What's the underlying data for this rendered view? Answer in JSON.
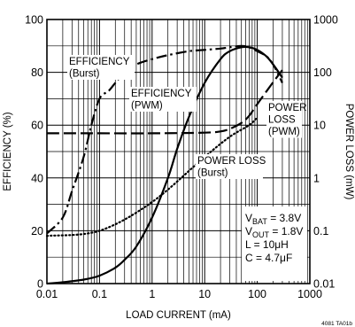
{
  "chart_data": {
    "type": "line",
    "xlabel": "LOAD CURRENT (mA)",
    "ylabel_left": "EFFICIENCY (%)",
    "ylabel_right": "POWER LOSS (mW)",
    "x_scale": "log",
    "xlim": [
      0.01,
      1000
    ],
    "y_left_lim": [
      0,
      100
    ],
    "y_right_scale": "log",
    "y_right_lim": [
      0.01,
      1000
    ],
    "x_ticks": [
      "0.01",
      "0.1",
      "1",
      "10",
      "100",
      "1000"
    ],
    "y_left_ticks": [
      "0",
      "20",
      "40",
      "60",
      "80",
      "100"
    ],
    "y_right_ticks": [
      "0.01",
      "0.1",
      "1",
      "10",
      "100",
      "1000"
    ],
    "grid": true,
    "series": [
      {
        "name": "EFFICIENCY (Burst)",
        "axis": "left",
        "style": "dash-dot",
        "x": [
          0.01,
          0.02,
          0.03,
          0.05,
          0.07,
          0.1,
          0.15,
          0.2,
          0.3,
          0.5,
          1,
          2,
          5,
          10,
          20,
          30,
          50,
          70,
          100,
          150,
          200,
          300
        ],
        "y": [
          19,
          25,
          35,
          48,
          60,
          70,
          73,
          76,
          80,
          83,
          85,
          86.5,
          88,
          88.5,
          89,
          89.5,
          90,
          89.5,
          88,
          86,
          83,
          76
        ]
      },
      {
        "name": "EFFICIENCY (PWM)",
        "axis": "left",
        "style": "solid",
        "x": [
          0.01,
          0.02,
          0.05,
          0.1,
          0.2,
          0.3,
          0.5,
          1,
          2,
          3,
          5,
          10,
          20,
          30,
          50,
          70,
          100,
          150,
          200,
          300
        ],
        "y": [
          0,
          0.5,
          1.5,
          3,
          6,
          9,
          14,
          25,
          40,
          51,
          63,
          76,
          85,
          88,
          89.5,
          89.5,
          88.5,
          86,
          83,
          78
        ]
      },
      {
        "name": "POWER LOSS (PWM)",
        "axis": "right",
        "style": "dashed",
        "x": [
          0.01,
          0.1,
          1,
          10,
          20,
          30,
          50,
          70,
          100,
          200,
          300
        ],
        "y": [
          7,
          7,
          7,
          7.2,
          7.6,
          8.5,
          11,
          15,
          25,
          65,
          110
        ]
      },
      {
        "name": "POWER LOSS (Burst)",
        "axis": "right",
        "style": "dotted",
        "x": [
          0.01,
          0.1,
          1,
          10,
          30,
          70,
          100
        ],
        "y": [
          0.08,
          0.1,
          0.35,
          2.5,
          6,
          10,
          14
        ]
      }
    ],
    "annotations": [
      {
        "lines": [
          "EFFICIENCY",
          "(Burst)"
        ]
      },
      {
        "lines": [
          "EFFICIENCY",
          "(PWM)"
        ]
      },
      {
        "lines": [
          "POWER",
          "LOSS",
          "(PWM)"
        ]
      },
      {
        "lines": [
          "POWER LOSS",
          "(Burst)"
        ]
      }
    ],
    "conditions": [
      {
        "main": "V",
        "sub": "BAT",
        "rest": " = 3.8V"
      },
      {
        "main": "V",
        "sub": "OUT",
        "rest": " = 1.8V"
      },
      {
        "main": "L = 10μH",
        "sub": "",
        "rest": ""
      },
      {
        "main": "C = 4.7μF",
        "sub": "",
        "rest": ""
      }
    ],
    "figure_id": "4081 TA01b"
  }
}
